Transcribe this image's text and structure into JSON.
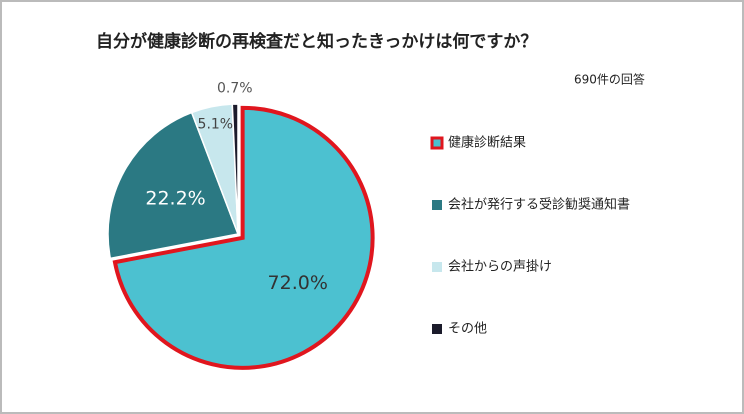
{
  "chart_data": {
    "type": "pie",
    "title": "自分が健康診断の再検査だと知ったきっかけは何ですか？",
    "subtitle": "690件の回答",
    "categories": [
      "健康診断結果",
      "会社が発行する受診勧奨通知書",
      "会社からの声掛け",
      "その他"
    ],
    "values": [
      72.0,
      22.2,
      5.1,
      0.7
    ],
    "value_labels": [
      "72.0%",
      "22.2%",
      "5.1%",
      "0.7%"
    ],
    "colors": [
      "#4cc1d0",
      "#2b7983",
      "#c7e7ed",
      "#1b1b2b"
    ],
    "highlight": {
      "index": 0,
      "color": "#e0161e"
    },
    "legend": "right"
  }
}
